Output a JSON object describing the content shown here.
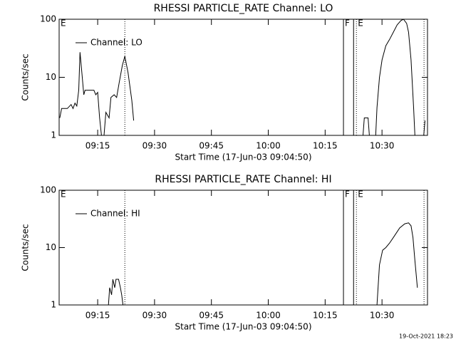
{
  "chart_data": [
    {
      "type": "line",
      "title": "RHESSI PARTICLE_RATE Channel: LO",
      "xlabel": "Start Time (17-Jun-03 09:04:50)",
      "ylabel": "Counts/sec",
      "x": [
        "09:05:00",
        "09:05:30",
        "09:07:00",
        "09:08:00",
        "09:08:30",
        "09:09:00",
        "09:09:30",
        "09:10:00",
        "09:10:20",
        "09:10:50",
        "09:11:20",
        "09:11:40",
        "09:14:00",
        "09:14:30",
        "09:15:00",
        "09:15:30",
        "09:16:00",
        "09:16:40",
        "09:17:10",
        "09:18:00",
        "09:18:30",
        "09:19:20",
        "09:20:00",
        "09:20:40",
        "09:21:30",
        "09:22:10",
        "09:23:00",
        "09:24:00",
        "09:24:30",
        "09:30:00",
        "10:23:40",
        "10:25:00",
        "10:25:20",
        "10:26:20",
        "10:26:40",
        "10:28:20",
        "10:28:40",
        "10:29:20",
        "10:30:00",
        "10:31:00",
        "10:32:00",
        "10:33:00",
        "10:34:00",
        "10:35:00",
        "10:35:40",
        "10:36:30",
        "10:37:00",
        "10:37:40",
        "10:38:20",
        "10:38:40",
        "10:40:00",
        "10:41:00",
        "10:41:20"
      ],
      "series": [
        {
          "name": "Channel: LO",
          "color": "#000000",
          "values": [
            2,
            2.9,
            2.9,
            3.4,
            2.9,
            3.6,
            3.2,
            6,
            27,
            12,
            5,
            6,
            6,
            5,
            5.5,
            2,
            1,
            1,
            2.5,
            2,
            4.5,
            5,
            4.5,
            8,
            16,
            23,
            12,
            4,
            1.8,
            null,
            1,
            1,
            2,
            2,
            1,
            1,
            3,
            10,
            20,
            35,
            45,
            60,
            80,
            95,
            100,
            85,
            60,
            20,
            3,
            1,
            null,
            1,
            1.8
          ]
        }
      ],
      "xlim": [
        "09:04:50",
        "10:42:00"
      ],
      "xticks": [
        "09:15",
        "09:30",
        "09:45",
        "10:00",
        "10:15",
        "10:30"
      ],
      "ylim": [
        1,
        100
      ],
      "yticks": [
        1,
        10,
        100
      ],
      "log_y": true,
      "markers": [
        {
          "x": "09:22:10",
          "style": "dotted"
        },
        {
          "x": "10:19:50",
          "style": "solid"
        },
        {
          "x": "10:22:30",
          "style": "solid"
        },
        {
          "x": "10:23:15",
          "style": "dotted"
        },
        {
          "x": "10:41:05",
          "style": "dotted"
        }
      ],
      "flags": [
        {
          "label": "E",
          "x": "09:04:50"
        },
        {
          "label": "F",
          "x": "10:19:50"
        },
        {
          "label": "E",
          "x": "10:23:15"
        }
      ]
    },
    {
      "type": "line",
      "title": "RHESSI PARTICLE_RATE Channel: HI",
      "xlabel": "Start Time (17-Jun-03 09:04:50)",
      "ylabel": "Counts/sec",
      "x": [
        "09:17:50",
        "09:18:10",
        "09:18:40",
        "09:19:00",
        "09:19:30",
        "09:19:50",
        "09:20:30",
        "09:21:00",
        "09:21:20",
        "09:21:40",
        "09:30:00",
        "10:28:40",
        "10:29:20",
        "10:30:10",
        "10:31:00",
        "10:32:00",
        "10:33:00",
        "10:34:40",
        "10:36:00",
        "10:37:00",
        "10:37:40",
        "10:38:10",
        "10:38:40",
        "10:39:20"
      ],
      "series": [
        {
          "name": "Channel: HI",
          "color": "#000000",
          "values": [
            1,
            2,
            1.5,
            2.8,
            2,
            2.8,
            2.8,
            2,
            1.5,
            1,
            null,
            1,
            5,
            9,
            10,
            12,
            15,
            22,
            26,
            27,
            24,
            15,
            6,
            2
          ]
        }
      ],
      "xlim": [
        "09:04:50",
        "10:42:00"
      ],
      "xticks": [
        "09:15",
        "09:30",
        "09:45",
        "10:00",
        "10:15",
        "10:30"
      ],
      "ylim": [
        1,
        100
      ],
      "yticks": [
        1,
        10,
        100
      ],
      "log_y": true,
      "markers": [
        {
          "x": "09:22:10",
          "style": "dotted"
        },
        {
          "x": "10:19:50",
          "style": "solid"
        },
        {
          "x": "10:22:30",
          "style": "solid"
        },
        {
          "x": "10:23:15",
          "style": "dotted"
        },
        {
          "x": "10:41:05",
          "style": "dotted"
        }
      ],
      "flags": [
        {
          "label": "E",
          "x": "09:04:50"
        },
        {
          "label": "F",
          "x": "10:19:50"
        },
        {
          "label": "E",
          "x": "10:23:15"
        }
      ]
    }
  ],
  "footer": "19-Oct-2021 18:23"
}
